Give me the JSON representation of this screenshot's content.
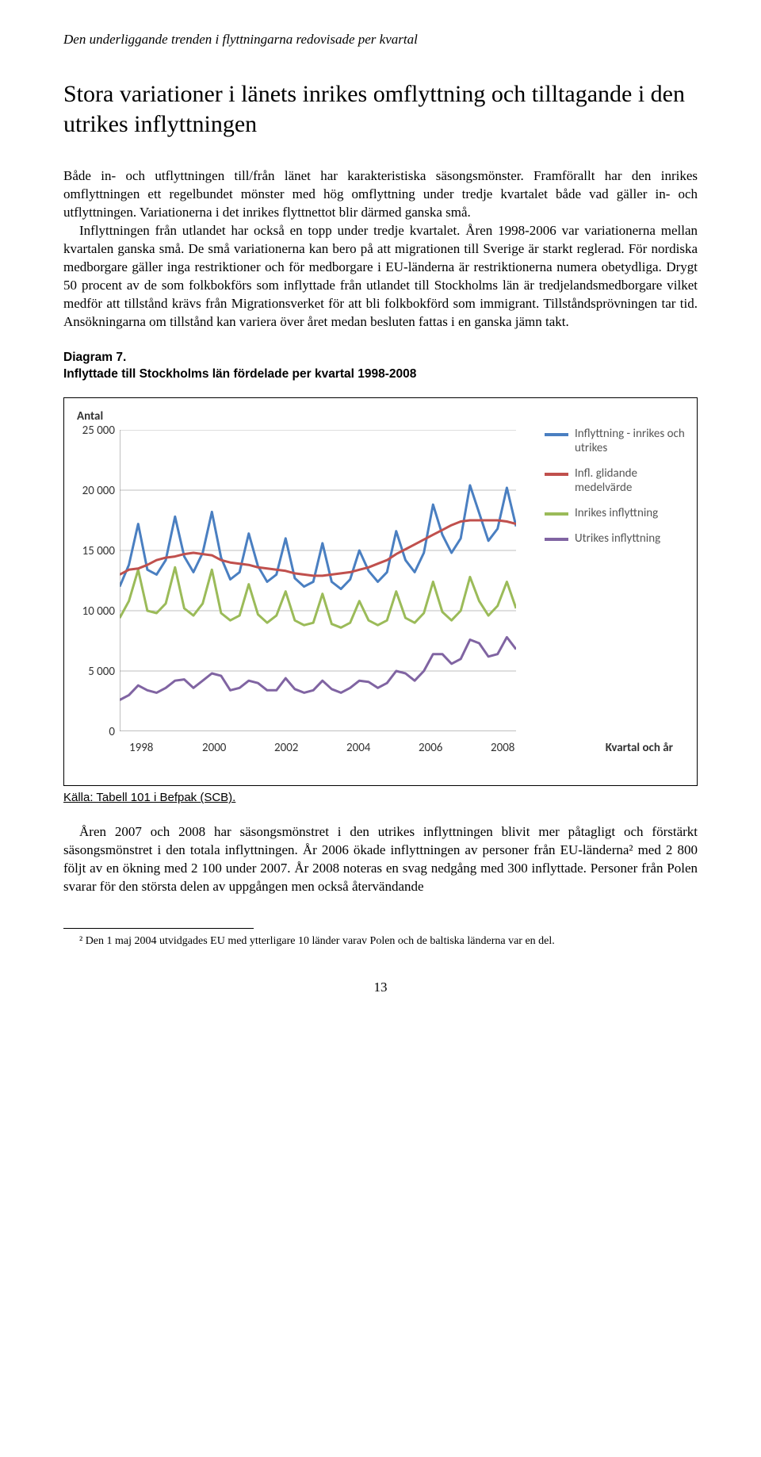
{
  "header_italic": "Den underliggande trenden i flyttningarna redovisade per kvartal",
  "section_title": "Stora variationer i länets inrikes omflyttning och tilltagande i den utrikes inflyttningen",
  "paragraph1": "Både in- och utflyttningen till/från länet har karakteristiska säsongsmönster. Framförallt har den inrikes omflyttningen ett regelbundet mönster med hög omflyttning under tredje kvartalet både vad gäller in- och utflyttningen. Variationerna i det inrikes flyttnettot blir därmed ganska små.",
  "paragraph2": "Inflyttningen från utlandet har också en topp under tredje kvartalet. Åren 1998-2006 var variationerna mellan kvartalen ganska små. De små variationerna kan bero på att migrationen till Sverige är starkt reglerad. För nordiska medborgare gäller inga restriktioner och för medborgare i EU-länderna är restriktionerna numera obetydliga. Drygt 50 procent av de som folkbokförs som inflyttade från utlandet till Stockholms län är tredjelandsmedborgare vilket medför att tillstånd krävs från Migrationsverket för att bli folkbokförd som immigrant. Tillståndsprövningen tar tid. Ansökningarna om tillstånd kan variera över året medan besluten fattas i en ganska jämn takt.",
  "diagram_label": "Diagram 7.",
  "diagram_subtitle": "Inflyttade till Stockholms län fördelade per kvartal 1998-2008",
  "chart": {
    "type": "line",
    "y_axis_title": "Antal",
    "y_ticks": [
      "0",
      "5 000",
      "10 000",
      "15 000",
      "20 000",
      "25 000"
    ],
    "ylim": [
      0,
      25000
    ],
    "x_ticks": [
      "1998",
      "2000",
      "2002",
      "2004",
      "2006",
      "2008"
    ],
    "x_axis_label": "Kvartal och år",
    "colors": {
      "total": "#4a7fc1",
      "glidande": "#c0504d",
      "inrikes": "#9bbb59",
      "utrikes": "#8064a2",
      "grid": "#bfbfbf",
      "background": "#ffffff"
    },
    "line_width": 3,
    "legend": [
      {
        "color": "#4a7fc1",
        "label": "Inflyttning - inrikes och utrikes"
      },
      {
        "color": "#c0504d",
        "label": "Infl. glidande medelvärde"
      },
      {
        "color": "#9bbb59",
        "label": "Inrikes inflyttning"
      },
      {
        "color": "#8064a2",
        "label": "Utrikes inflyttning"
      }
    ],
    "series": {
      "total": [
        12000,
        13800,
        17200,
        13400,
        13000,
        14200,
        17800,
        14500,
        13200,
        14800,
        18200,
        14400,
        12600,
        13200,
        16400,
        13700,
        12400,
        13000,
        16000,
        12700,
        12000,
        12400,
        15600,
        12400,
        11800,
        12600,
        15000,
        13300,
        12400,
        13200,
        16600,
        14200,
        13200,
        14800,
        18800,
        16300,
        14800,
        16000,
        20400,
        18100,
        15800,
        16800,
        20200,
        17000
      ],
      "glidande": [
        13000,
        13400,
        13500,
        13800,
        14200,
        14400,
        14500,
        14700,
        14800,
        14700,
        14600,
        14200,
        14000,
        13900,
        13800,
        13600,
        13500,
        13400,
        13300,
        13100,
        13000,
        12900,
        12900,
        13000,
        13100,
        13200,
        13400,
        13600,
        13900,
        14200,
        14700,
        15100,
        15500,
        15900,
        16300,
        16700,
        17100,
        17400,
        17500,
        17500,
        17500,
        17500,
        17400,
        17200
      ],
      "inrikes": [
        9400,
        10800,
        13400,
        10000,
        9800,
        10600,
        13600,
        10200,
        9600,
        10600,
        13400,
        9800,
        9200,
        9600,
        12200,
        9700,
        9000,
        9600,
        11600,
        9200,
        8800,
        9000,
        11400,
        8900,
        8600,
        9000,
        10800,
        9200,
        8800,
        9200,
        11600,
        9400,
        9000,
        9800,
        12400,
        9900,
        9200,
        10000,
        12800,
        10800,
        9600,
        10400,
        12400,
        10200
      ],
      "utrikes": [
        2600,
        3000,
        3800,
        3400,
        3200,
        3600,
        4200,
        4300,
        3600,
        4200,
        4800,
        4600,
        3400,
        3600,
        4200,
        4000,
        3400,
        3400,
        4400,
        3500,
        3200,
        3400,
        4200,
        3500,
        3200,
        3600,
        4200,
        4100,
        3600,
        4000,
        5000,
        4800,
        4200,
        5000,
        6400,
        6400,
        5600,
        6000,
        7600,
        7300,
        6200,
        6400,
        7800,
        6800
      ]
    }
  },
  "source": "Källa: Tabell 101 i Befpak (SCB).",
  "paragraph3": "Åren 2007 och 2008 har säsongsmönstret i den utrikes inflyttningen blivit mer påtagligt och förstärkt säsongsmönstret i den totala inflyttningen. År 2006 ökade inflyttningen av personer från EU-länderna² med 2 800 följt av en ökning med 2 100 under 2007. År 2008 noteras en svag nedgång med 300 inflyttade. Personer från Polen svarar för den största delen av uppgången men också återvändande",
  "footnote": "² Den 1 maj 2004 utvidgades EU med ytterligare 10 länder varav Polen och de baltiska länderna var en del.",
  "page_number": "13"
}
